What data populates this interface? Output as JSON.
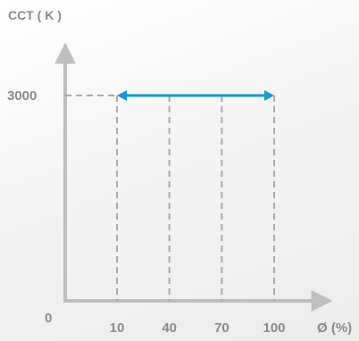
{
  "chart_data": {
    "type": "line",
    "ylabel": "CCT ( K )",
    "xlabel": "Ø (%)",
    "origin_label": "0",
    "x_ticks": [
      10,
      40,
      70,
      100
    ],
    "y_ticks": [
      3000
    ],
    "series": [
      {
        "x": [
          10,
          100
        ],
        "y": [
          3000,
          3000
        ],
        "color": "#1a96d6",
        "arrowheads": "both"
      }
    ],
    "guides": "dashed vertical lines at each x tick up to the series; dashed horizontal line from y axis to series start",
    "axis_color": "#bfbfbf",
    "guide_color": "#a8a8a8",
    "text_color": "#8a8a8a",
    "grid": false
  }
}
